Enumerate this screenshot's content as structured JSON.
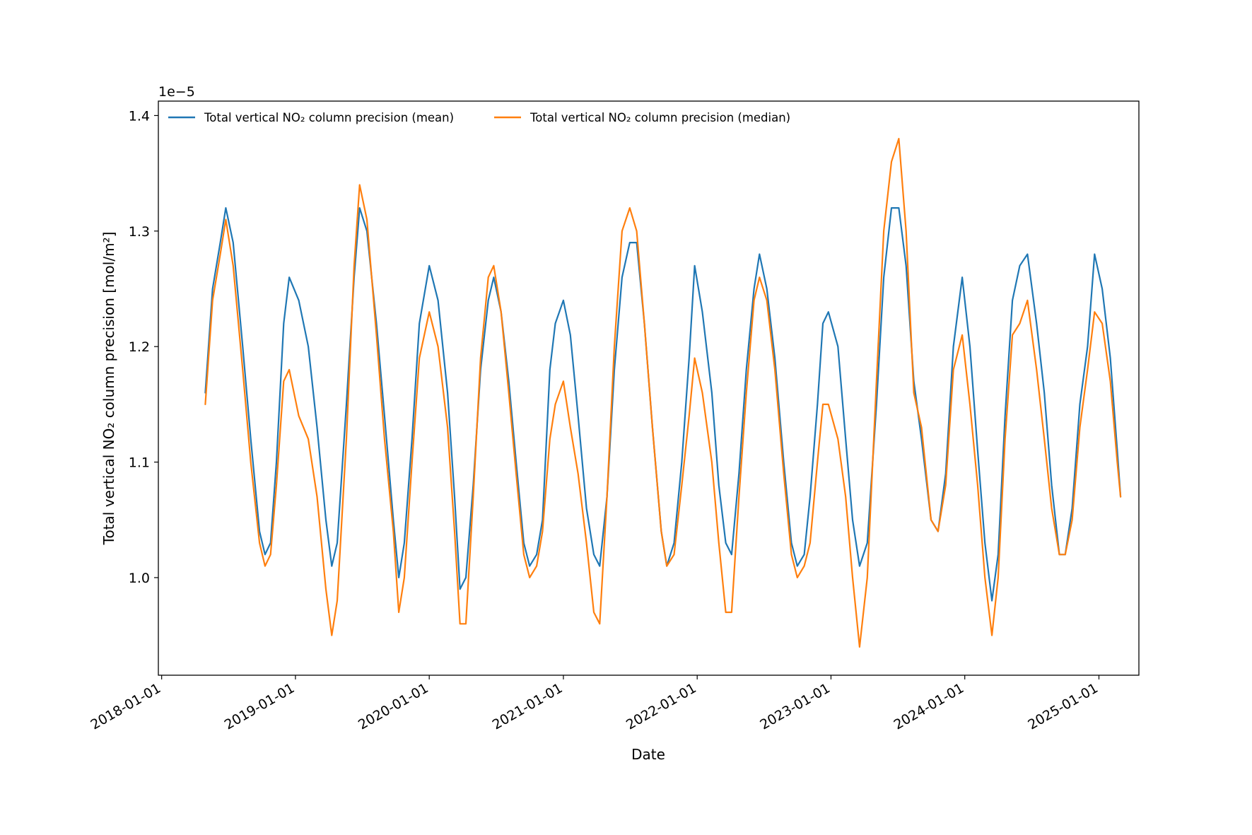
{
  "chart_data": {
    "type": "line",
    "title": "",
    "xlabel": "Date",
    "ylabel": "Total vertical NO₂ column precision [mol/m²]",
    "y_offset_text": "1e−5",
    "y_scale_factor": 1e-05,
    "xlim": [
      "2017-12-23",
      "2025-04-20"
    ],
    "ylim": [
      0.9155,
      1.4125
    ],
    "x_ticks": [
      "2018-01-01",
      "2019-01-01",
      "2020-01-01",
      "2021-01-01",
      "2022-01-01",
      "2023-01-01",
      "2024-01-01",
      "2025-01-01"
    ],
    "y_ticks": [
      "1.0",
      "1.1",
      "1.2",
      "1.3",
      "1.4"
    ],
    "grid": false,
    "legend": {
      "position": "top-left",
      "columns": 2
    },
    "series": [
      {
        "name": "Total vertical NO₂ column precision (mean)",
        "color": "#1f77b4",
        "points": [
          [
            "2018-04-30",
            1.16
          ],
          [
            "2018-05-20",
            1.25
          ],
          [
            "2018-06-10",
            1.29
          ],
          [
            "2018-06-25",
            1.32
          ],
          [
            "2018-07-15",
            1.29
          ],
          [
            "2018-08-10",
            1.2
          ],
          [
            "2018-09-01",
            1.12
          ],
          [
            "2018-09-25",
            1.04
          ],
          [
            "2018-10-10",
            1.02
          ],
          [
            "2018-10-25",
            1.03
          ],
          [
            "2018-11-10",
            1.1
          ],
          [
            "2018-11-30",
            1.22
          ],
          [
            "2018-12-15",
            1.26
          ],
          [
            "2019-01-10",
            1.24
          ],
          [
            "2019-02-05",
            1.2
          ],
          [
            "2019-03-01",
            1.13
          ],
          [
            "2019-03-25",
            1.05
          ],
          [
            "2019-04-10",
            1.01
          ],
          [
            "2019-04-25",
            1.03
          ],
          [
            "2019-05-20",
            1.15
          ],
          [
            "2019-06-10",
            1.26
          ],
          [
            "2019-06-25",
            1.32
          ],
          [
            "2019-07-15",
            1.3
          ],
          [
            "2019-08-10",
            1.22
          ],
          [
            "2019-09-01",
            1.14
          ],
          [
            "2019-09-25",
            1.05
          ],
          [
            "2019-10-10",
            1.0
          ],
          [
            "2019-10-25",
            1.03
          ],
          [
            "2019-11-15",
            1.12
          ],
          [
            "2019-12-05",
            1.22
          ],
          [
            "2020-01-01",
            1.27
          ],
          [
            "2020-01-25",
            1.24
          ],
          [
            "2020-02-20",
            1.16
          ],
          [
            "2020-03-10",
            1.07
          ],
          [
            "2020-03-25",
            0.99
          ],
          [
            "2020-04-10",
            1.0
          ],
          [
            "2020-04-30",
            1.08
          ],
          [
            "2020-05-20",
            1.18
          ],
          [
            "2020-06-10",
            1.24
          ],
          [
            "2020-06-25",
            1.26
          ],
          [
            "2020-07-15",
            1.23
          ],
          [
            "2020-08-05",
            1.17
          ],
          [
            "2020-08-25",
            1.1
          ],
          [
            "2020-09-15",
            1.03
          ],
          [
            "2020-10-01",
            1.01
          ],
          [
            "2020-10-20",
            1.02
          ],
          [
            "2020-11-05",
            1.05
          ],
          [
            "2020-11-25",
            1.18
          ],
          [
            "2020-12-10",
            1.22
          ],
          [
            "2021-01-01",
            1.24
          ],
          [
            "2021-01-20",
            1.21
          ],
          [
            "2021-02-10",
            1.14
          ],
          [
            "2021-03-05",
            1.06
          ],
          [
            "2021-03-25",
            1.02
          ],
          [
            "2021-04-10",
            1.01
          ],
          [
            "2021-04-30",
            1.07
          ],
          [
            "2021-05-20",
            1.18
          ],
          [
            "2021-06-10",
            1.26
          ],
          [
            "2021-07-01",
            1.29
          ],
          [
            "2021-07-20",
            1.29
          ],
          [
            "2021-08-10",
            1.22
          ],
          [
            "2021-09-01",
            1.13
          ],
          [
            "2021-09-25",
            1.04
          ],
          [
            "2021-10-10",
            1.01
          ],
          [
            "2021-10-30",
            1.03
          ],
          [
            "2021-11-20",
            1.1
          ],
          [
            "2021-12-10",
            1.19
          ],
          [
            "2021-12-25",
            1.27
          ],
          [
            "2022-01-15",
            1.23
          ],
          [
            "2022-02-10",
            1.16
          ],
          [
            "2022-03-01",
            1.08
          ],
          [
            "2022-03-20",
            1.03
          ],
          [
            "2022-04-05",
            1.02
          ],
          [
            "2022-04-25",
            1.09
          ],
          [
            "2022-05-15",
            1.18
          ],
          [
            "2022-06-05",
            1.25
          ],
          [
            "2022-06-20",
            1.28
          ],
          [
            "2022-07-10",
            1.25
          ],
          [
            "2022-08-01",
            1.19
          ],
          [
            "2022-08-25",
            1.1
          ],
          [
            "2022-09-15",
            1.03
          ],
          [
            "2022-10-01",
            1.01
          ],
          [
            "2022-10-20",
            1.02
          ],
          [
            "2022-11-05",
            1.07
          ],
          [
            "2022-11-25",
            1.15
          ],
          [
            "2022-12-10",
            1.22
          ],
          [
            "2022-12-25",
            1.23
          ],
          [
            "2023-01-20",
            1.2
          ],
          [
            "2023-02-10",
            1.12
          ],
          [
            "2023-03-01",
            1.05
          ],
          [
            "2023-03-20",
            1.01
          ],
          [
            "2023-04-10",
            1.03
          ],
          [
            "2023-05-05",
            1.15
          ],
          [
            "2023-05-25",
            1.26
          ],
          [
            "2023-06-15",
            1.32
          ],
          [
            "2023-07-05",
            1.32
          ],
          [
            "2023-07-25",
            1.27
          ],
          [
            "2023-08-15",
            1.17
          ],
          [
            "2023-09-05",
            1.12
          ],
          [
            "2023-10-01",
            1.05
          ],
          [
            "2023-10-20",
            1.04
          ],
          [
            "2023-11-10",
            1.09
          ],
          [
            "2023-12-01",
            1.2
          ],
          [
            "2023-12-25",
            1.26
          ],
          [
            "2024-01-15",
            1.2
          ],
          [
            "2024-02-05",
            1.11
          ],
          [
            "2024-02-25",
            1.03
          ],
          [
            "2024-03-15",
            0.98
          ],
          [
            "2024-04-01",
            1.02
          ],
          [
            "2024-04-20",
            1.14
          ],
          [
            "2024-05-10",
            1.24
          ],
          [
            "2024-05-30",
            1.27
          ],
          [
            "2024-06-20",
            1.28
          ],
          [
            "2024-07-15",
            1.22
          ],
          [
            "2024-08-05",
            1.16
          ],
          [
            "2024-08-25",
            1.08
          ],
          [
            "2024-09-15",
            1.02
          ],
          [
            "2024-10-01",
            1.02
          ],
          [
            "2024-10-20",
            1.06
          ],
          [
            "2024-11-10",
            1.15
          ],
          [
            "2024-12-01",
            1.2
          ],
          [
            "2024-12-20",
            1.28
          ],
          [
            "2025-01-10",
            1.25
          ],
          [
            "2025-02-01",
            1.19
          ],
          [
            "2025-02-20",
            1.11
          ],
          [
            "2025-03-01",
            1.07
          ]
        ]
      },
      {
        "name": "Total vertical NO₂ column precision (median)",
        "color": "#ff7f0e",
        "points": [
          [
            "2018-04-30",
            1.15
          ],
          [
            "2018-05-20",
            1.24
          ],
          [
            "2018-06-10",
            1.28
          ],
          [
            "2018-06-25",
            1.31
          ],
          [
            "2018-07-15",
            1.27
          ],
          [
            "2018-08-10",
            1.18
          ],
          [
            "2018-09-01",
            1.1
          ],
          [
            "2018-09-25",
            1.03
          ],
          [
            "2018-10-10",
            1.01
          ],
          [
            "2018-10-25",
            1.02
          ],
          [
            "2018-11-10",
            1.08
          ],
          [
            "2018-11-30",
            1.17
          ],
          [
            "2018-12-15",
            1.18
          ],
          [
            "2019-01-10",
            1.14
          ],
          [
            "2019-02-05",
            1.12
          ],
          [
            "2019-03-01",
            1.07
          ],
          [
            "2019-03-25",
            0.99
          ],
          [
            "2019-04-10",
            0.95
          ],
          [
            "2019-04-25",
            0.98
          ],
          [
            "2019-05-20",
            1.12
          ],
          [
            "2019-06-10",
            1.27
          ],
          [
            "2019-06-25",
            1.34
          ],
          [
            "2019-07-15",
            1.31
          ],
          [
            "2019-08-10",
            1.21
          ],
          [
            "2019-09-01",
            1.12
          ],
          [
            "2019-09-25",
            1.04
          ],
          [
            "2019-10-10",
            0.97
          ],
          [
            "2019-10-25",
            1.0
          ],
          [
            "2019-11-15",
            1.1
          ],
          [
            "2019-12-05",
            1.19
          ],
          [
            "2020-01-01",
            1.23
          ],
          [
            "2020-01-25",
            1.2
          ],
          [
            "2020-02-20",
            1.13
          ],
          [
            "2020-03-10",
            1.04
          ],
          [
            "2020-03-25",
            0.96
          ],
          [
            "2020-04-10",
            0.96
          ],
          [
            "2020-04-30",
            1.07
          ],
          [
            "2020-05-20",
            1.19
          ],
          [
            "2020-06-10",
            1.26
          ],
          [
            "2020-06-25",
            1.27
          ],
          [
            "2020-07-15",
            1.23
          ],
          [
            "2020-08-05",
            1.16
          ],
          [
            "2020-08-25",
            1.09
          ],
          [
            "2020-09-15",
            1.02
          ],
          [
            "2020-10-01",
            1.0
          ],
          [
            "2020-10-20",
            1.01
          ],
          [
            "2020-11-05",
            1.04
          ],
          [
            "2020-11-25",
            1.12
          ],
          [
            "2020-12-10",
            1.15
          ],
          [
            "2021-01-01",
            1.17
          ],
          [
            "2021-01-20",
            1.13
          ],
          [
            "2021-02-10",
            1.09
          ],
          [
            "2021-03-05",
            1.03
          ],
          [
            "2021-03-25",
            0.97
          ],
          [
            "2021-04-10",
            0.96
          ],
          [
            "2021-04-30",
            1.07
          ],
          [
            "2021-05-20",
            1.2
          ],
          [
            "2021-06-10",
            1.3
          ],
          [
            "2021-07-01",
            1.32
          ],
          [
            "2021-07-20",
            1.3
          ],
          [
            "2021-08-10",
            1.22
          ],
          [
            "2021-09-01",
            1.13
          ],
          [
            "2021-09-25",
            1.04
          ],
          [
            "2021-10-10",
            1.01
          ],
          [
            "2021-10-30",
            1.02
          ],
          [
            "2021-11-20",
            1.08
          ],
          [
            "2021-12-10",
            1.14
          ],
          [
            "2021-12-25",
            1.19
          ],
          [
            "2022-01-15",
            1.16
          ],
          [
            "2022-02-10",
            1.1
          ],
          [
            "2022-03-01",
            1.03
          ],
          [
            "2022-03-20",
            0.97
          ],
          [
            "2022-04-05",
            0.97
          ],
          [
            "2022-04-25",
            1.07
          ],
          [
            "2022-05-15",
            1.16
          ],
          [
            "2022-06-05",
            1.24
          ],
          [
            "2022-06-20",
            1.26
          ],
          [
            "2022-07-10",
            1.24
          ],
          [
            "2022-08-01",
            1.18
          ],
          [
            "2022-08-25",
            1.09
          ],
          [
            "2022-09-15",
            1.02
          ],
          [
            "2022-10-01",
            1.0
          ],
          [
            "2022-10-20",
            1.01
          ],
          [
            "2022-11-05",
            1.03
          ],
          [
            "2022-11-25",
            1.1
          ],
          [
            "2022-12-10",
            1.15
          ],
          [
            "2022-12-25",
            1.15
          ],
          [
            "2023-01-20",
            1.12
          ],
          [
            "2023-02-10",
            1.07
          ],
          [
            "2023-03-01",
            1.0
          ],
          [
            "2023-03-20",
            0.94
          ],
          [
            "2023-04-10",
            1.0
          ],
          [
            "2023-05-05",
            1.17
          ],
          [
            "2023-05-25",
            1.3
          ],
          [
            "2023-06-15",
            1.36
          ],
          [
            "2023-07-05",
            1.38
          ],
          [
            "2023-07-25",
            1.3
          ],
          [
            "2023-08-15",
            1.16
          ],
          [
            "2023-09-05",
            1.13
          ],
          [
            "2023-10-01",
            1.05
          ],
          [
            "2023-10-20",
            1.04
          ],
          [
            "2023-11-10",
            1.08
          ],
          [
            "2023-12-01",
            1.18
          ],
          [
            "2023-12-25",
            1.21
          ],
          [
            "2024-01-15",
            1.15
          ],
          [
            "2024-02-05",
            1.08
          ],
          [
            "2024-02-25",
            1.0
          ],
          [
            "2024-03-15",
            0.95
          ],
          [
            "2024-04-01",
            1.0
          ],
          [
            "2024-04-20",
            1.12
          ],
          [
            "2024-05-10",
            1.21
          ],
          [
            "2024-05-30",
            1.22
          ],
          [
            "2024-06-20",
            1.24
          ],
          [
            "2024-07-15",
            1.18
          ],
          [
            "2024-08-05",
            1.12
          ],
          [
            "2024-08-25",
            1.06
          ],
          [
            "2024-09-15",
            1.02
          ],
          [
            "2024-10-01",
            1.02
          ],
          [
            "2024-10-20",
            1.05
          ],
          [
            "2024-11-10",
            1.13
          ],
          [
            "2024-12-01",
            1.18
          ],
          [
            "2024-12-20",
            1.23
          ],
          [
            "2025-01-10",
            1.22
          ],
          [
            "2025-02-01",
            1.17
          ],
          [
            "2025-02-20",
            1.1
          ],
          [
            "2025-03-01",
            1.07
          ]
        ]
      }
    ]
  }
}
